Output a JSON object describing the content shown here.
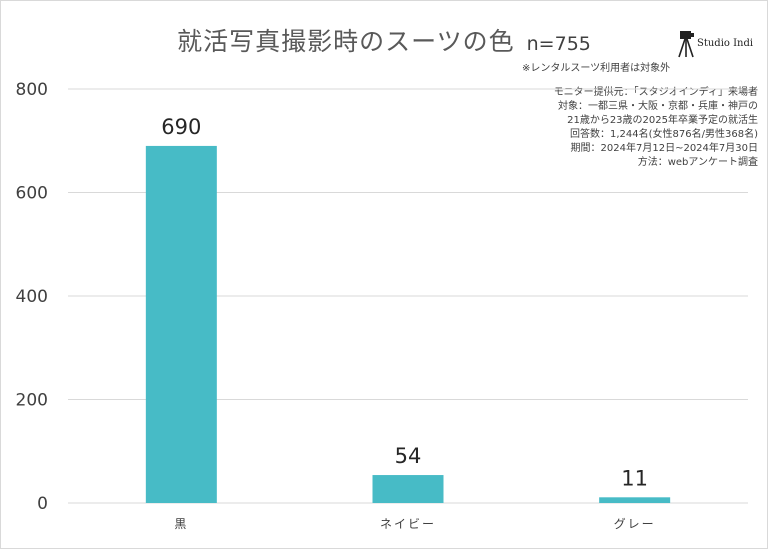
{
  "header": {
    "title": "就活写真撮影時のスーツの色",
    "n_label": "n=755",
    "note": "※レンタルスーツ利用者は対象外"
  },
  "brand": {
    "name": "Studio Indi",
    "icon": "camera-tripod-icon"
  },
  "source_lines": [
    "モニター提供元：「スタジオインディ」来場者",
    "対象：一都三県・大阪・京都・兵庫・神戸の",
    "21歳から23歳の2025年卒業予定の就活生",
    "回答数：1,244名(女性876名/男性368名)",
    "期間：2024年7月12日~2024年7月30日",
    "方法：webアンケート調査"
  ],
  "colors": {
    "bar": "#47bbc6",
    "grid": "#d9d9d9",
    "text": "#404040",
    "title": "#595959"
  },
  "chart_data": {
    "type": "bar",
    "title": "就活写真撮影時のスーツの色",
    "categories": [
      "黒",
      "ネイビー",
      "グレー"
    ],
    "values": [
      690,
      54,
      11
    ],
    "data_labels": [
      "690",
      "54",
      "11"
    ],
    "ylim": [
      0,
      800
    ],
    "yticks": [
      0,
      200,
      400,
      600,
      800
    ],
    "xlabel": "",
    "ylabel": "",
    "grid": true,
    "legend": "none"
  }
}
